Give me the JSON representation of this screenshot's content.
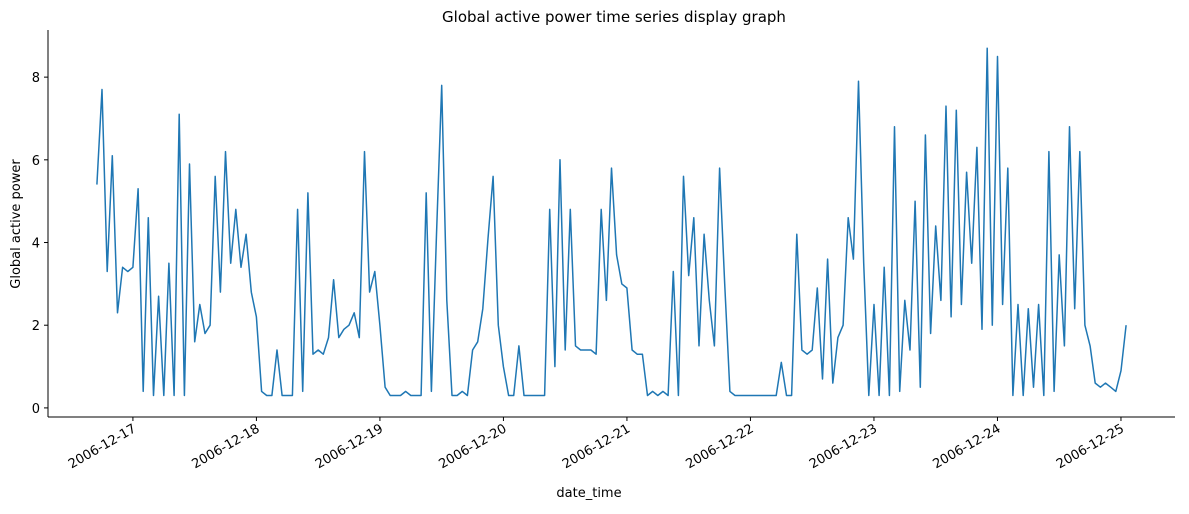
{
  "chart_data": {
    "type": "line",
    "title": "Global active power time series display graph",
    "x_label": "date_time",
    "y_label": "Global active power",
    "xlim": [
      "2006-12-16 07:30",
      "2006-12-25 10:30"
    ],
    "xticks": [
      "2006-12-17",
      "2006-12-18",
      "2006-12-19",
      "2006-12-20",
      "2006-12-21",
      "2006-12-22",
      "2006-12-23",
      "2006-12-24",
      "2006-12-25"
    ],
    "ylim": [
      -0.22,
      9.14
    ],
    "yticks": [
      0,
      2,
      4,
      6,
      8
    ],
    "grid": false,
    "series": [
      {
        "name": "Global_active_power",
        "color": "#1f77b4",
        "x": [
          "2006-12-16 17:00",
          "2006-12-16 18:00",
          "2006-12-16 19:00",
          "2006-12-16 20:00",
          "2006-12-16 21:00",
          "2006-12-16 22:00",
          "2006-12-16 23:00",
          "2006-12-17 00:00",
          "2006-12-17 01:00",
          "2006-12-17 02:00",
          "2006-12-17 03:00",
          "2006-12-17 04:00",
          "2006-12-17 05:00",
          "2006-12-17 06:00",
          "2006-12-17 07:00",
          "2006-12-17 08:00",
          "2006-12-17 09:00",
          "2006-12-17 10:00",
          "2006-12-17 11:00",
          "2006-12-17 12:00",
          "2006-12-17 13:00",
          "2006-12-17 14:00",
          "2006-12-17 15:00",
          "2006-12-17 16:00",
          "2006-12-17 17:00",
          "2006-12-17 18:00",
          "2006-12-17 19:00",
          "2006-12-17 20:00",
          "2006-12-17 21:00",
          "2006-12-17 22:00",
          "2006-12-17 23:00",
          "2006-12-18 00:00",
          "2006-12-18 01:00",
          "2006-12-18 02:00",
          "2006-12-18 03:00",
          "2006-12-18 04:00",
          "2006-12-18 05:00",
          "2006-12-18 06:00",
          "2006-12-18 07:00",
          "2006-12-18 08:00",
          "2006-12-18 09:00",
          "2006-12-18 10:00",
          "2006-12-18 11:00",
          "2006-12-18 12:00",
          "2006-12-18 13:00",
          "2006-12-18 14:00",
          "2006-12-18 15:00",
          "2006-12-18 16:00",
          "2006-12-18 17:00",
          "2006-12-18 18:00",
          "2006-12-18 19:00",
          "2006-12-18 20:00",
          "2006-12-18 21:00",
          "2006-12-18 22:00",
          "2006-12-18 23:00",
          "2006-12-19 00:00",
          "2006-12-19 01:00",
          "2006-12-19 02:00",
          "2006-12-19 03:00",
          "2006-12-19 04:00",
          "2006-12-19 05:00",
          "2006-12-19 06:00",
          "2006-12-19 07:00",
          "2006-12-19 08:00",
          "2006-12-19 09:00",
          "2006-12-19 10:00",
          "2006-12-19 11:00",
          "2006-12-19 12:00",
          "2006-12-19 13:00",
          "2006-12-19 14:00",
          "2006-12-19 15:00",
          "2006-12-19 16:00",
          "2006-12-19 17:00",
          "2006-12-19 18:00",
          "2006-12-19 19:00",
          "2006-12-19 20:00",
          "2006-12-19 21:00",
          "2006-12-19 22:00",
          "2006-12-19 23:00",
          "2006-12-20 00:00",
          "2006-12-20 01:00",
          "2006-12-20 02:00",
          "2006-12-20 03:00",
          "2006-12-20 04:00",
          "2006-12-20 05:00",
          "2006-12-20 06:00",
          "2006-12-20 07:00",
          "2006-12-20 08:00",
          "2006-12-20 09:00",
          "2006-12-20 10:00",
          "2006-12-20 11:00",
          "2006-12-20 12:00",
          "2006-12-20 13:00",
          "2006-12-20 14:00",
          "2006-12-20 15:00",
          "2006-12-20 16:00",
          "2006-12-20 17:00",
          "2006-12-20 18:00",
          "2006-12-20 19:00",
          "2006-12-20 20:00",
          "2006-12-20 21:00",
          "2006-12-20 22:00",
          "2006-12-20 23:00",
          "2006-12-21 00:00",
          "2006-12-21 01:00",
          "2006-12-21 02:00",
          "2006-12-21 03:00",
          "2006-12-21 04:00",
          "2006-12-21 05:00",
          "2006-12-21 06:00",
          "2006-12-21 07:00",
          "2006-12-21 08:00",
          "2006-12-21 09:00",
          "2006-12-21 10:00",
          "2006-12-21 11:00",
          "2006-12-21 12:00",
          "2006-12-21 13:00",
          "2006-12-21 14:00",
          "2006-12-21 15:00",
          "2006-12-21 16:00",
          "2006-12-21 17:00",
          "2006-12-21 18:00",
          "2006-12-21 19:00",
          "2006-12-21 20:00",
          "2006-12-21 21:00",
          "2006-12-21 22:00",
          "2006-12-21 23:00",
          "2006-12-22 00:00",
          "2006-12-22 01:00",
          "2006-12-22 02:00",
          "2006-12-22 03:00",
          "2006-12-22 04:00",
          "2006-12-22 05:00",
          "2006-12-22 06:00",
          "2006-12-22 07:00",
          "2006-12-22 08:00",
          "2006-12-22 09:00",
          "2006-12-22 10:00",
          "2006-12-22 11:00",
          "2006-12-22 12:00",
          "2006-12-22 13:00",
          "2006-12-22 14:00",
          "2006-12-22 15:00",
          "2006-12-22 16:00",
          "2006-12-22 17:00",
          "2006-12-22 18:00",
          "2006-12-22 19:00",
          "2006-12-22 20:00",
          "2006-12-22 21:00",
          "2006-12-22 22:00",
          "2006-12-22 23:00",
          "2006-12-23 00:00",
          "2006-12-23 01:00",
          "2006-12-23 02:00",
          "2006-12-23 03:00",
          "2006-12-23 04:00",
          "2006-12-23 05:00",
          "2006-12-23 06:00",
          "2006-12-23 07:00",
          "2006-12-23 08:00",
          "2006-12-23 09:00",
          "2006-12-23 10:00",
          "2006-12-23 11:00",
          "2006-12-23 12:00",
          "2006-12-23 13:00",
          "2006-12-23 14:00",
          "2006-12-23 15:00",
          "2006-12-23 16:00",
          "2006-12-23 17:00",
          "2006-12-23 18:00",
          "2006-12-23 19:00",
          "2006-12-23 20:00",
          "2006-12-23 21:00",
          "2006-12-23 22:00",
          "2006-12-23 23:00",
          "2006-12-24 00:00",
          "2006-12-24 01:00",
          "2006-12-24 02:00",
          "2006-12-24 03:00",
          "2006-12-24 04:00",
          "2006-12-24 05:00",
          "2006-12-24 06:00",
          "2006-12-24 07:00",
          "2006-12-24 08:00",
          "2006-12-24 09:00",
          "2006-12-24 10:00",
          "2006-12-24 11:00",
          "2006-12-24 12:00",
          "2006-12-24 13:00",
          "2006-12-24 14:00",
          "2006-12-24 15:00",
          "2006-12-24 16:00",
          "2006-12-24 17:00",
          "2006-12-24 18:00",
          "2006-12-24 19:00",
          "2006-12-24 20:00",
          "2006-12-24 21:00",
          "2006-12-24 22:00",
          "2006-12-24 23:00",
          "2006-12-25 00:00",
          "2006-12-25 01:00"
        ],
        "values": [
          5.4,
          7.7,
          3.3,
          6.1,
          2.3,
          3.4,
          3.3,
          3.4,
          5.3,
          0.4,
          4.6,
          0.3,
          2.7,
          0.3,
          3.5,
          0.3,
          7.1,
          0.3,
          5.9,
          1.6,
          2.5,
          1.8,
          2.0,
          5.6,
          2.8,
          6.2,
          3.5,
          4.8,
          3.4,
          4.2,
          2.8,
          2.2,
          0.4,
          0.3,
          0.3,
          1.4,
          0.3,
          0.3,
          0.3,
          4.8,
          0.4,
          5.2,
          1.3,
          1.4,
          1.3,
          1.7,
          3.1,
          1.7,
          1.9,
          2.0,
          2.3,
          1.7,
          6.2,
          2.8,
          3.3,
          2.0,
          0.5,
          0.3,
          0.3,
          0.3,
          0.4,
          0.3,
          0.3,
          0.3,
          5.2,
          0.4,
          4.2,
          7.8,
          2.6,
          0.3,
          0.3,
          0.4,
          0.3,
          1.4,
          1.6,
          2.4,
          4.1,
          5.6,
          2.0,
          1.0,
          0.3,
          0.3,
          1.5,
          0.3,
          0.3,
          0.3,
          0.3,
          0.3,
          4.8,
          1.0,
          6.0,
          1.4,
          4.8,
          1.5,
          1.4,
          1.4,
          1.4,
          1.3,
          4.8,
          2.6,
          5.8,
          3.7,
          3.0,
          2.9,
          1.4,
          1.3,
          1.3,
          0.3,
          0.4,
          0.3,
          0.4,
          0.3,
          3.3,
          0.3,
          5.6,
          3.2,
          4.6,
          1.5,
          4.2,
          2.6,
          1.5,
          5.8,
          3.0,
          0.4,
          0.3,
          0.3,
          0.3,
          0.3,
          0.3,
          0.3,
          0.3,
          0.3,
          0.3,
          1.1,
          0.3,
          0.3,
          4.2,
          1.4,
          1.3,
          1.4,
          2.9,
          0.7,
          3.6,
          0.6,
          1.7,
          2.0,
          4.6,
          3.6,
          7.9,
          3.5,
          0.3,
          2.5,
          0.3,
          3.4,
          0.3,
          6.8,
          0.4,
          2.6,
          1.4,
          5.0,
          0.5,
          6.6,
          1.8,
          4.4,
          2.6,
          7.3,
          2.2,
          7.2,
          2.5,
          5.7,
          3.5,
          6.3,
          1.9,
          8.7,
          2.0,
          8.5,
          2.5,
          5.8,
          0.3,
          2.5,
          0.3,
          2.4,
          0.5,
          2.5,
          0.3,
          6.2,
          0.4,
          3.7,
          1.5,
          6.8,
          2.4,
          6.2,
          2.0,
          1.5,
          0.6,
          0.5,
          0.6,
          0.5,
          0.4,
          0.9,
          2.0
        ]
      }
    ]
  }
}
